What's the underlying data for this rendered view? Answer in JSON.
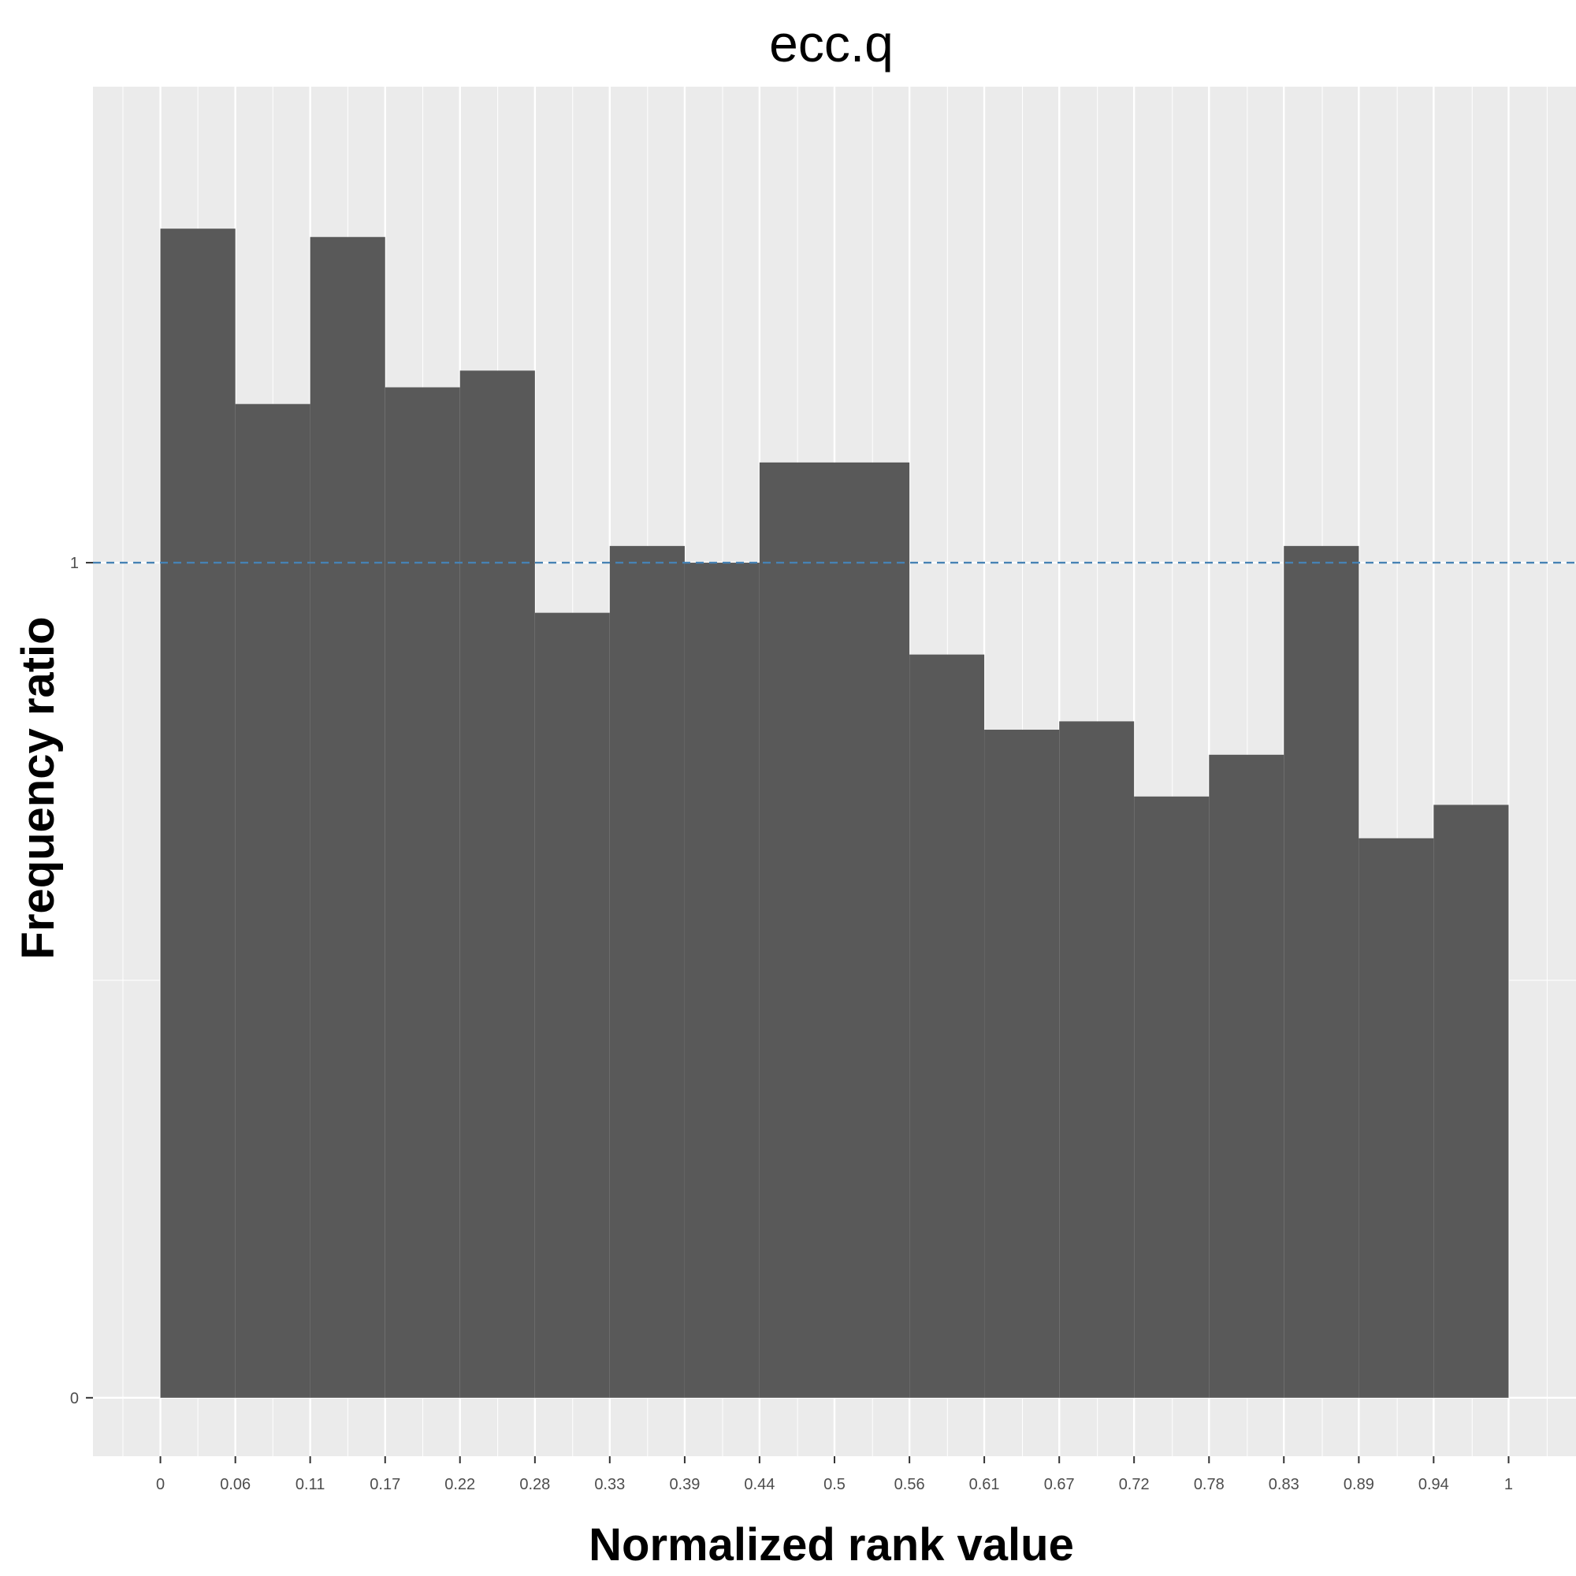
{
  "chart_data": {
    "type": "bar",
    "title": "ecc.q",
    "xlabel": "Normalized rank value",
    "ylabel": "Frequency ratio",
    "x_ticks": [
      "0",
      "0.06",
      "0.11",
      "0.17",
      "0.22",
      "0.28",
      "0.33",
      "0.39",
      "0.44",
      "0.5",
      "0.56",
      "0.61",
      "0.67",
      "0.72",
      "0.78",
      "0.83",
      "0.89",
      "0.94",
      "1"
    ],
    "y_ticks": [
      "0",
      "1"
    ],
    "bin_edges": [
      0,
      0.0556,
      0.1111,
      0.1667,
      0.2222,
      0.2778,
      0.3333,
      0.3889,
      0.4444,
      0.5,
      0.5556,
      0.6111,
      0.6667,
      0.7222,
      0.7778,
      0.8333,
      0.8889,
      0.9444,
      1.0
    ],
    "values": [
      1.4,
      1.19,
      1.39,
      1.21,
      1.23,
      0.94,
      1.02,
      1.0,
      1.12,
      1.12,
      0.89,
      0.8,
      0.81,
      0.72,
      0.77,
      1.02,
      0.67,
      0.71
    ],
    "reference_line": {
      "y": 1,
      "style": "dashed",
      "color": "#4682b4"
    },
    "xlim": [
      -0.05,
      1.05
    ],
    "ylim": [
      -0.07,
      1.57
    ],
    "grid": true,
    "colors": {
      "bar": "#595959",
      "panel": "#ebebeb",
      "grid": "#ffffff"
    }
  }
}
